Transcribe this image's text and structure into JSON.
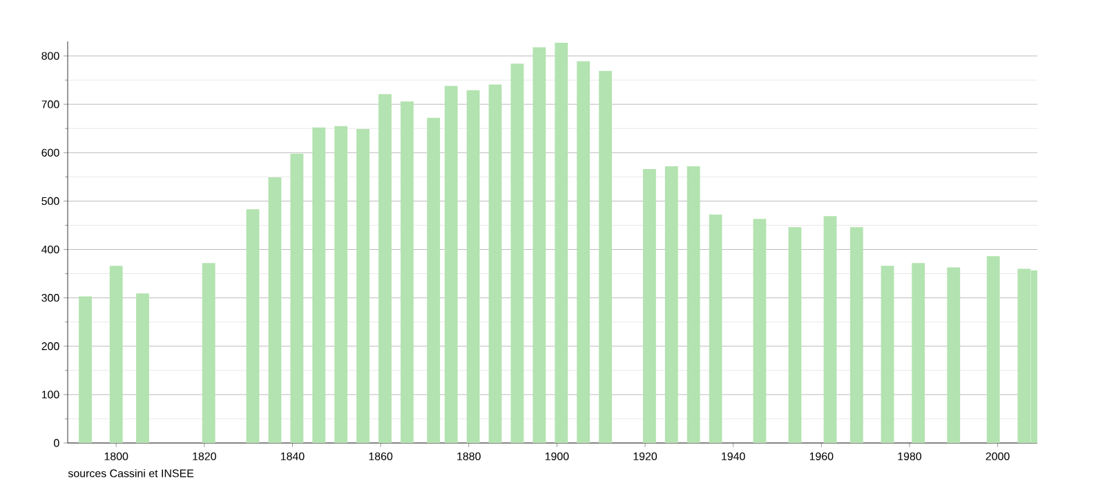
{
  "chart_data": {
    "type": "bar",
    "x": [
      1793,
      1800,
      1806,
      1821,
      1831,
      1836,
      1841,
      1846,
      1851,
      1856,
      1861,
      1866,
      1872,
      1876,
      1881,
      1886,
      1891,
      1896,
      1901,
      1906,
      1911,
      1921,
      1926,
      1931,
      1936,
      1946,
      1954,
      1962,
      1968,
      1975,
      1982,
      1990,
      1999,
      2006,
      2009
    ],
    "values": [
      303,
      366,
      309,
      372,
      483,
      549,
      598,
      652,
      655,
      649,
      721,
      706,
      672,
      738,
      729,
      741,
      784,
      818,
      827,
      789,
      769,
      566,
      572,
      572,
      472,
      463,
      446,
      469,
      446,
      366,
      372,
      363,
      386,
      360,
      357
    ],
    "color": "#b3e3b0",
    "xlim": [
      1789,
      2009
    ],
    "ylim": [
      0,
      830
    ],
    "xticks": [
      1800,
      1820,
      1840,
      1860,
      1880,
      1900,
      1920,
      1940,
      1960,
      1980,
      2000
    ],
    "yticks": [
      0,
      100,
      200,
      300,
      400,
      500,
      600,
      700,
      800
    ],
    "grid": true,
    "annotations": [
      "sources Cassini et INSEE"
    ]
  }
}
